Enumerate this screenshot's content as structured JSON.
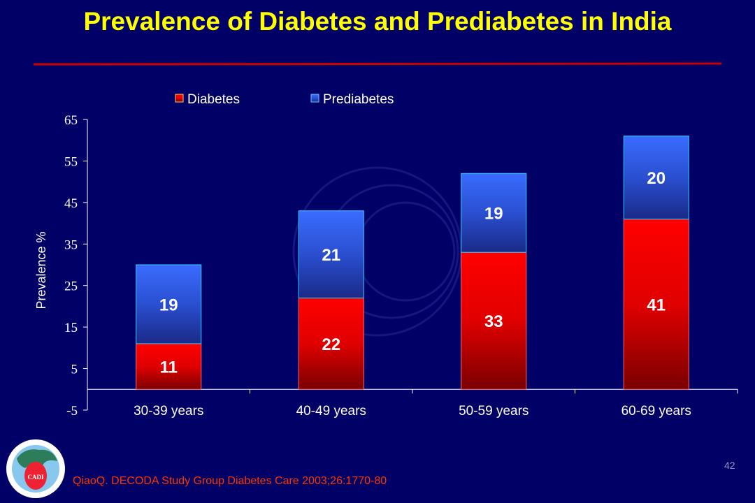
{
  "slide": {
    "title": "Prevalence of Diabetes and Prediabetes in India",
    "source": "QiaoQ. DECODA Study Group Diabetes Care 2003;26:1770-80",
    "page_number": "42",
    "logo_text": "CADI",
    "logo_ring_text": "COronary Artery Disease in Asian Indians · CADI Research Foundation",
    "colors": {
      "background": "#000066",
      "title": "#ffff00",
      "rule": "#cc0000",
      "source": "#ff3300",
      "diabetes": "#ff0000",
      "prediabetes": "#3366ff"
    }
  },
  "chart_data": {
    "type": "bar",
    "stacked": true,
    "categories": [
      "30-39 years",
      "40-49 years",
      "50-59 years",
      "60-69 years"
    ],
    "series": [
      {
        "name": "Diabetes",
        "values": [
          11,
          22,
          33,
          41
        ],
        "color": "#ff0000"
      },
      {
        "name": "Prediabetes",
        "values": [
          19,
          21,
          19,
          20
        ],
        "color": "#3366ff"
      }
    ],
    "ylabel": "Prevalence %",
    "xlabel": "",
    "ylim": [
      -5,
      65
    ],
    "yticks": [
      -5,
      5,
      15,
      25,
      35,
      45,
      55,
      65
    ],
    "grid": false,
    "legend": "top"
  }
}
